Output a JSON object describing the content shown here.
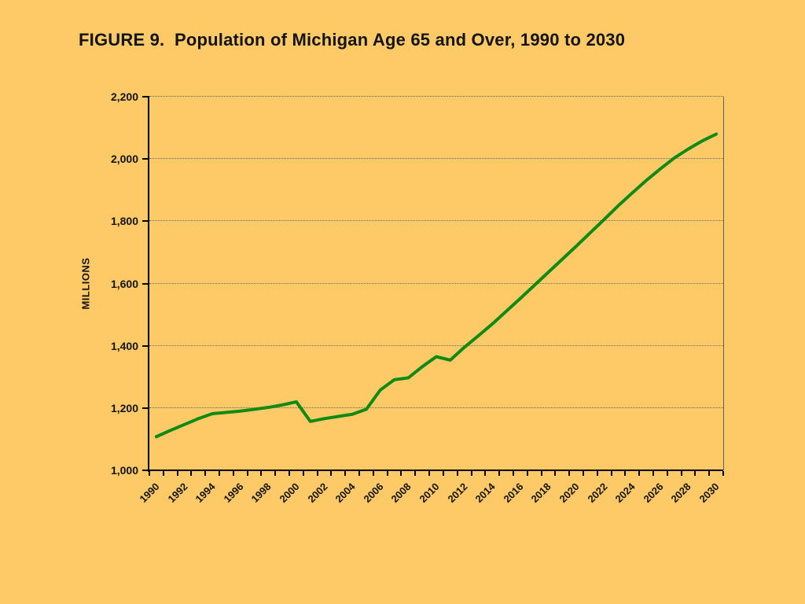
{
  "slide": {
    "background_color": "#FDCA67"
  },
  "title": "FIGURE 9.  Population of Michigan Age 65 and Over, 1990 to 2030",
  "chart_data": {
    "type": "line",
    "title": "FIGURE 9.  Population of Michigan Age 65 and Over, 1990 to 2030",
    "ylabel": "MILLIONS",
    "xlabel": "",
    "ylim": [
      1000,
      2200
    ],
    "ytick_interval": 200,
    "ytick_labels": [
      "1,000",
      "1,200",
      "1,400",
      "1,600",
      "1,800",
      "2,000",
      "2,200"
    ],
    "xtick_labels": [
      "1990",
      "1992",
      "1994",
      "1996",
      "1998",
      "2000",
      "2002",
      "2004",
      "2006",
      "2008",
      "2010",
      "2012",
      "2014",
      "2016",
      "2018",
      "2020",
      "2022",
      "2024",
      "2026",
      "2028",
      "2030"
    ],
    "x": [
      1990,
      1991,
      1992,
      1993,
      1994,
      1995,
      1996,
      1997,
      1998,
      1999,
      2000,
      2001,
      2002,
      2003,
      2004,
      2005,
      2006,
      2007,
      2008,
      2009,
      2010,
      2011,
      2012,
      2013,
      2014,
      2015,
      2016,
      2017,
      2018,
      2019,
      2020,
      2021,
      2022,
      2023,
      2024,
      2025,
      2026,
      2027,
      2028,
      2029,
      2030
    ],
    "values": [
      1108,
      1128,
      1147,
      1166,
      1182,
      1186,
      1190,
      1196,
      1202,
      1210,
      1220,
      1157,
      1166,
      1173,
      1180,
      1196,
      1258,
      1291,
      1297,
      1333,
      1365,
      1354,
      1395,
      1432,
      1470,
      1511,
      1552,
      1594,
      1636,
      1678,
      1720,
      1763,
      1806,
      1850,
      1891,
      1931,
      1968,
      2003,
      2032,
      2058,
      2080
    ],
    "grid": "horizontal-dotted",
    "legend": "none",
    "line_color": "#118A14",
    "axis_color": "#000000",
    "gridline_color": "#6A6A6A",
    "background_color": "#FDCA67"
  }
}
